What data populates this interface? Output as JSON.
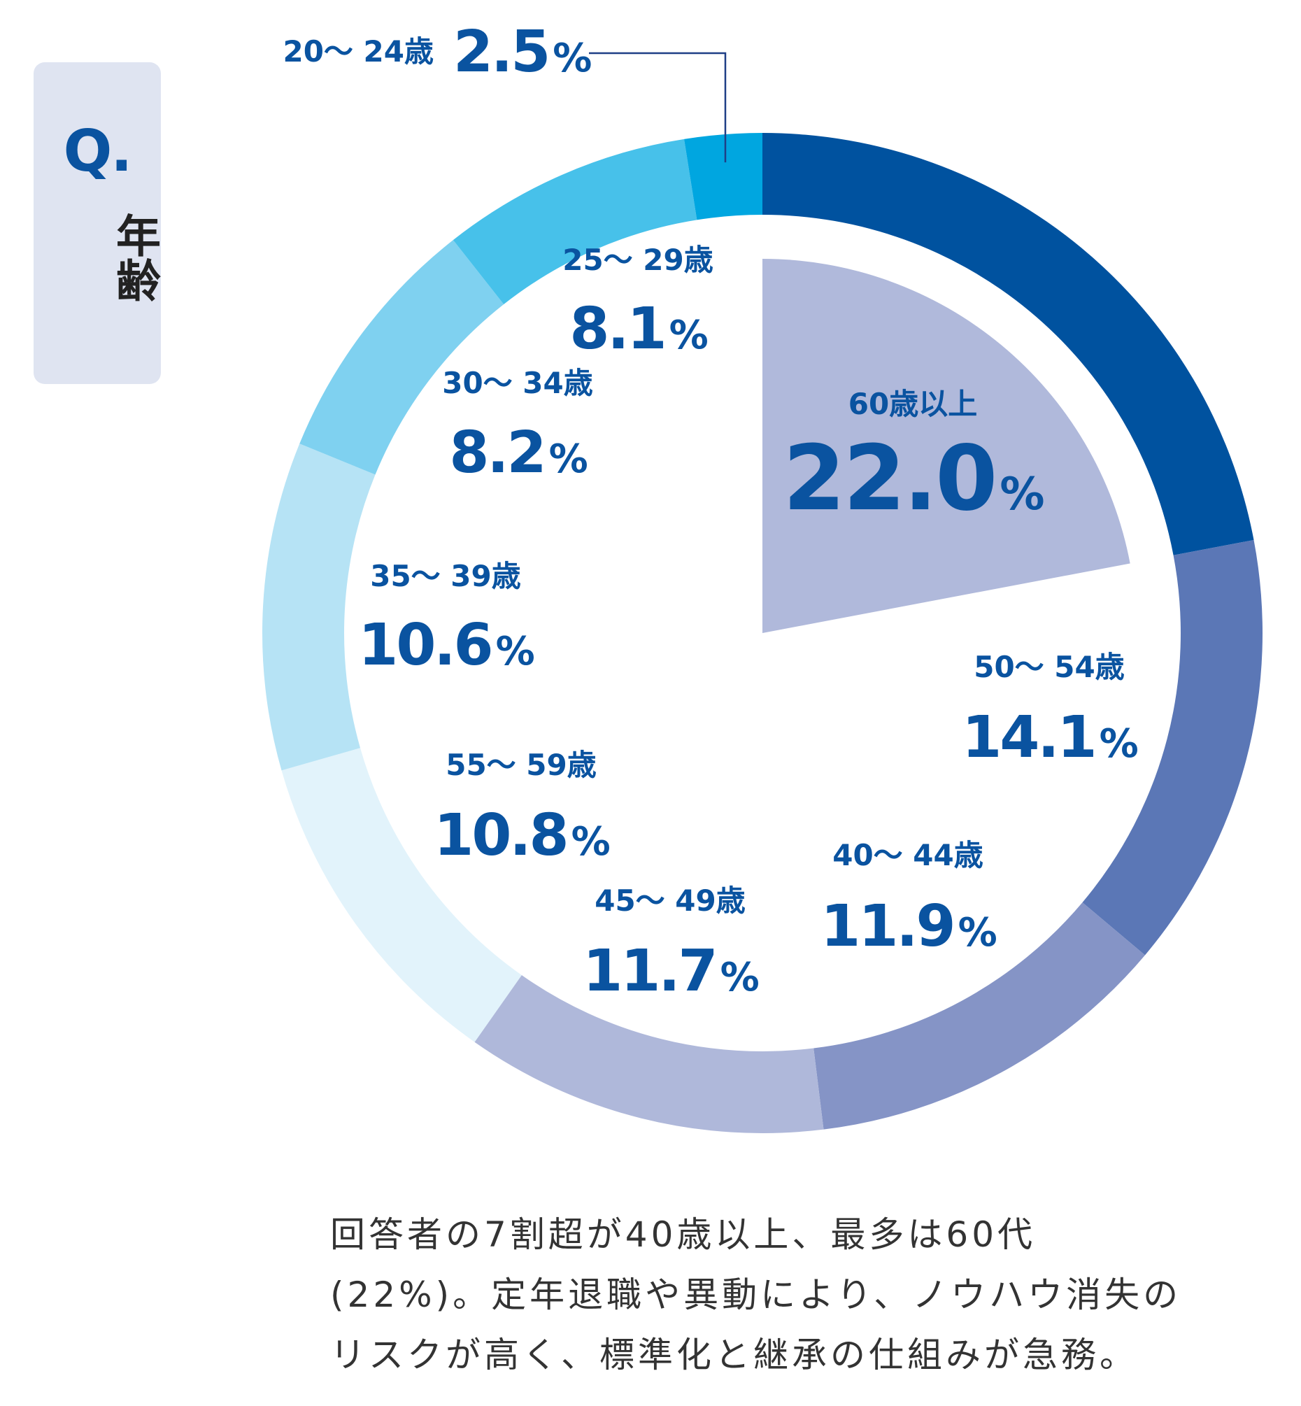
{
  "question": {
    "mark": "Q.",
    "title": "年齢"
  },
  "chart_data": {
    "type": "pie",
    "style": "donut-with-highlighted-slice",
    "highlight": "60歳以上",
    "categories": [
      "60歳以上",
      "50～ 54歳",
      "40～ 44歳",
      "45～ 49歳",
      "55～ 59歳",
      "35～ 39歳",
      "30～ 34歳",
      "25～ 29歳",
      "20～ 24歳"
    ],
    "values": [
      22.0,
      14.1,
      11.9,
      11.7,
      10.8,
      10.6,
      8.2,
      8.1,
      2.5
    ],
    "value_labels": [
      "22.0",
      "14.1",
      "11.9",
      "11.7",
      "10.8",
      "10.6",
      "8.2",
      "8.1",
      "2.5"
    ],
    "unit": "%",
    "colors": [
      "#00529f",
      "#5b77b6",
      "#8594c6",
      "#afb8da",
      "#e2f3fb",
      "#b6e3f5",
      "#7fd1f0",
      "#47c1ea",
      "#00a6e0"
    ],
    "highlight_color": "#b0b9db",
    "text_color": "#0a53a0"
  },
  "caption": "回答者の7割超が40歳以上、最多は60代\n(22%)。定年退職や異動により、ノウハウ消失の\nリスクが高く、標準化と継承の仕組みが急務。"
}
